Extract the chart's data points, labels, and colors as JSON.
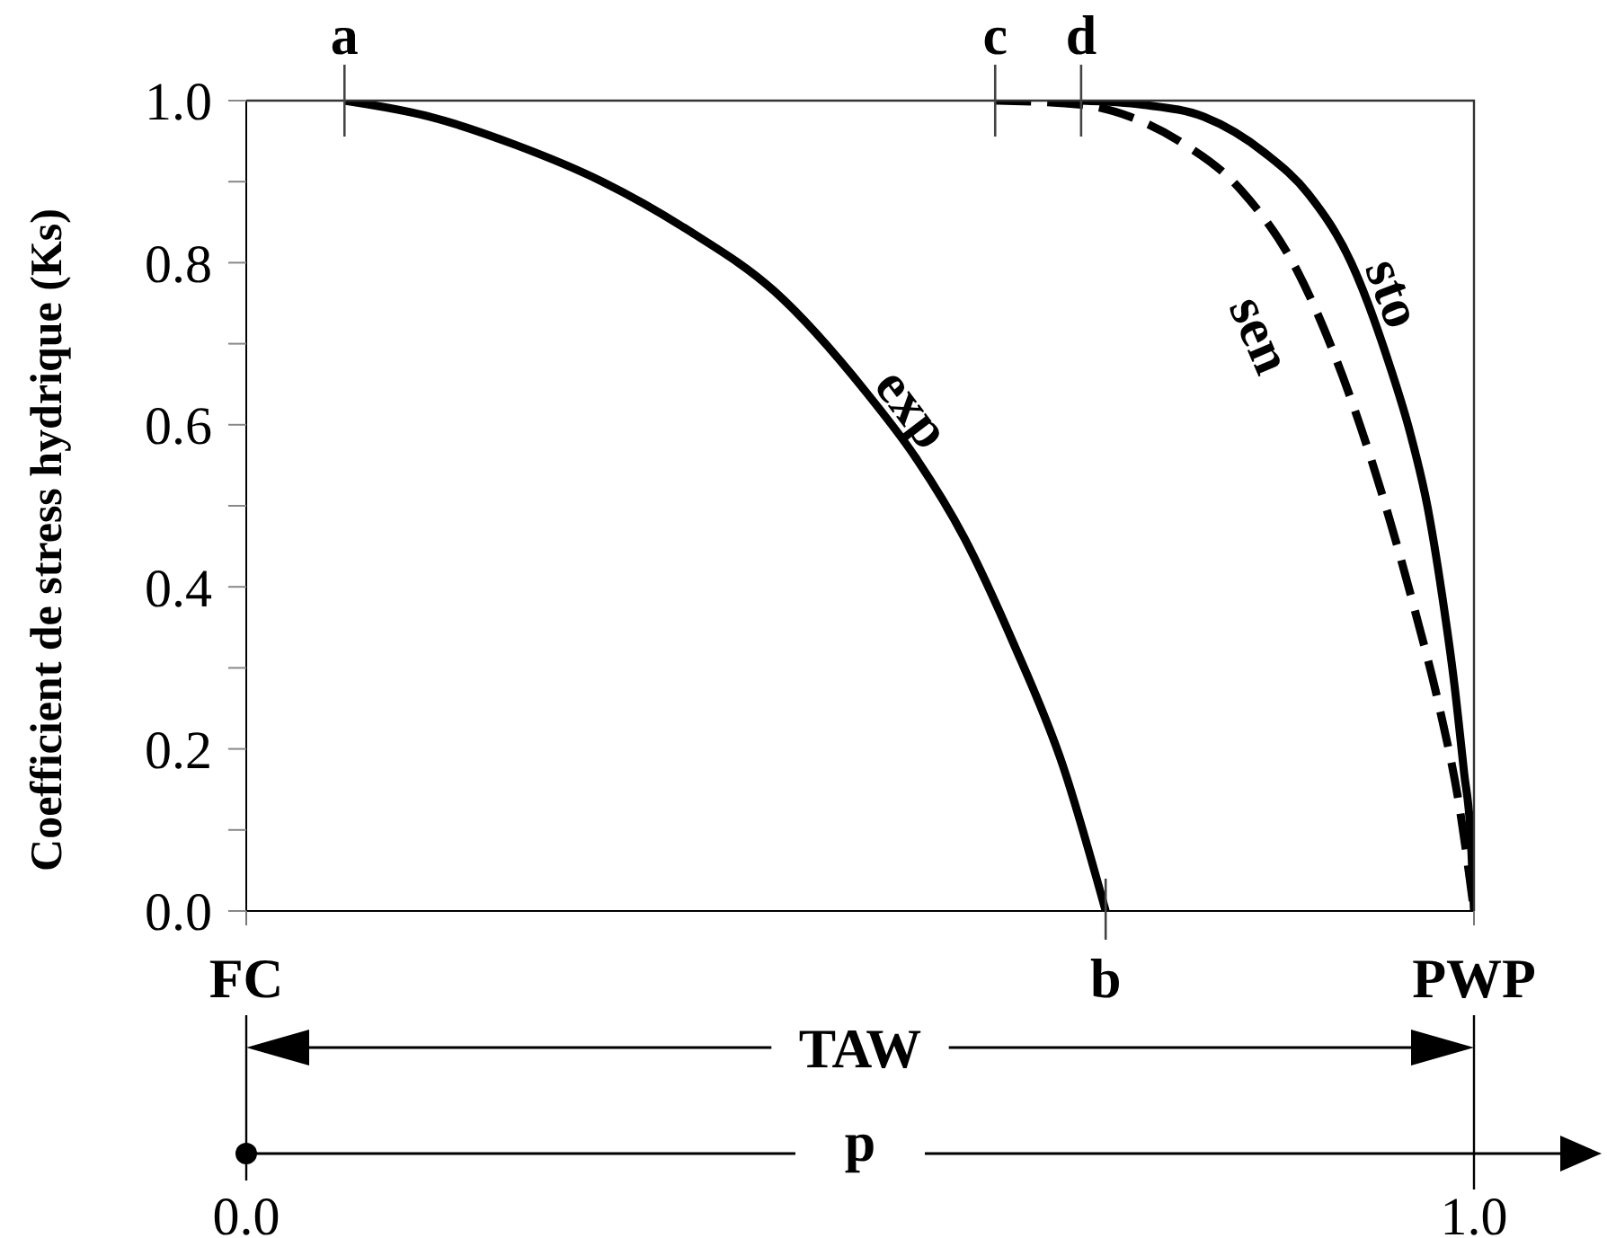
{
  "chart_data": {
    "type": "line",
    "ylabel": "Coefficient de stress hydrique (Ks)",
    "xlabel": "p",
    "xlim": [
      0,
      1
    ],
    "xticks": [
      {
        "value": 0,
        "label": "0.0"
      },
      {
        "value": 1,
        "label": "1.0"
      }
    ],
    "ylim": [
      0,
      1
    ],
    "yticks": [
      {
        "value": 0,
        "label": "0.0"
      },
      {
        "value": 0.1,
        "label": null
      },
      0.2,
      {
        "value": 0.3,
        "label": null
      },
      0.4,
      {
        "value": 0.5,
        "label": null
      },
      0.6,
      {
        "value": 0.7,
        "label": null
      },
      0.8,
      {
        "value": 0.9,
        "label": null
      },
      {
        "value": 1,
        "label": "1.0"
      }
    ],
    "series": [
      {
        "name": "exp",
        "color": "#000000",
        "x": [
          0.08,
          0.15,
          0.22,
          0.29,
          0.36,
          0.43,
          0.505,
          0.545,
          0.585,
          0.625,
          0.665,
          0.7
        ],
        "values": [
          1.0,
          0.98,
          0.945,
          0.9,
          0.84,
          0.765,
          0.64,
          0.56,
          0.46,
          0.33,
          0.18,
          0.0
        ]
      },
      {
        "name": "sen",
        "color": "#000000",
        "line_style": "dashed",
        "x": [
          0.61,
          0.68,
          0.72,
          0.76,
          0.81,
          0.856,
          0.893,
          0.926,
          0.952,
          0.972,
          0.988,
          1.0
        ],
        "values": [
          1.0,
          0.995,
          0.98,
          0.95,
          0.89,
          0.79,
          0.66,
          0.51,
          0.37,
          0.25,
          0.13,
          0.0
        ]
      },
      {
        "name": "sto",
        "color": "#000000",
        "x": [
          0.68,
          0.73,
          0.78,
          0.83,
          0.865,
          0.9,
          0.932,
          0.948,
          0.962,
          0.974,
          0.984,
          0.992,
          0.997,
          1.0
        ],
        "values": [
          1.0,
          0.995,
          0.98,
          0.935,
          0.885,
          0.8,
          0.67,
          0.59,
          0.5,
          0.39,
          0.28,
          0.17,
          0.1,
          0.0
        ]
      }
    ],
    "annotations": [
      "FC",
      "TAW",
      {
        "text": "a",
        "x": 0.08,
        "y": 1.0
      },
      {
        "text": "c",
        "x": 0.61,
        "y": 1.0
      },
      {
        "text": "d",
        "x": 0.68,
        "y": 1.0
      },
      {
        "text": "b",
        "x": 0.7,
        "y": 0.0
      },
      {
        "text": "PWP",
        "x": 1,
        "y": 0.0
      }
    ]
  }
}
